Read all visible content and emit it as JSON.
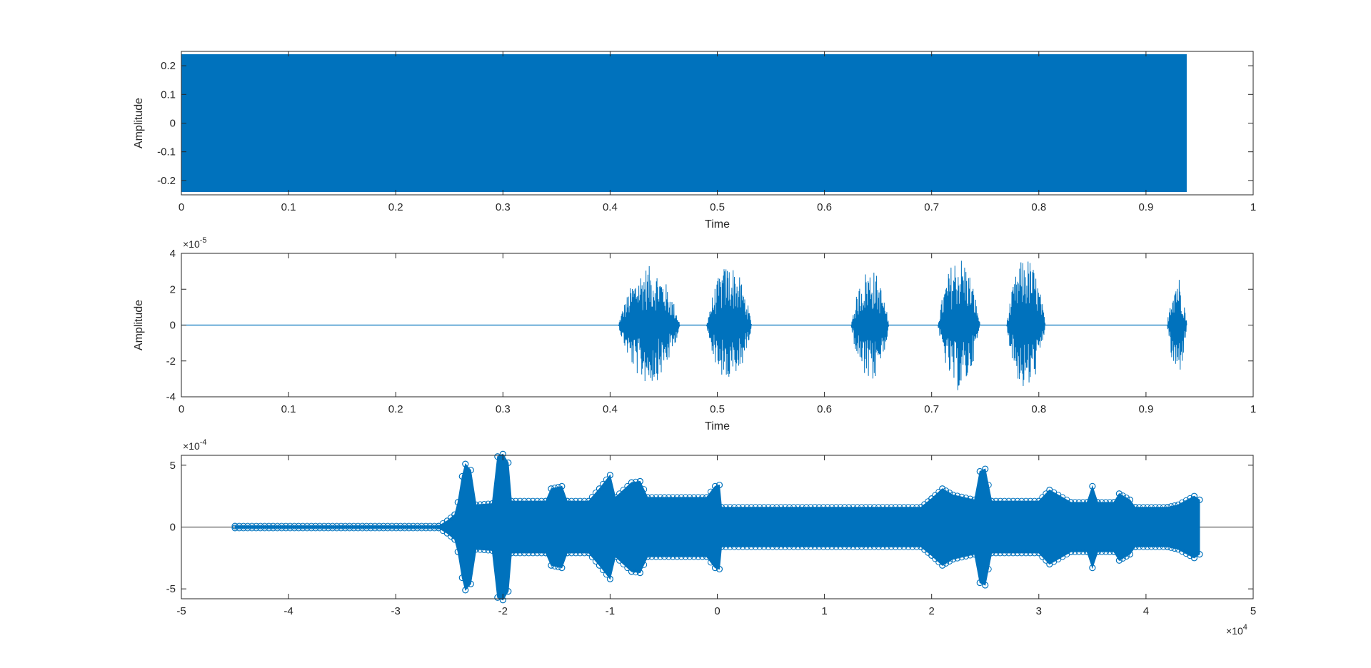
{
  "figure": {
    "background": "#ffffff",
    "series_color": "#0072BD",
    "axis_color": "#262626"
  },
  "chart_data": [
    {
      "type": "area",
      "xlabel": "Time",
      "ylabel": "Amplitude",
      "xlim": [
        0,
        1
      ],
      "ylim": [
        -0.25,
        0.25
      ],
      "xticks": [
        0,
        0.1,
        0.2,
        0.3,
        0.4,
        0.5,
        0.6,
        0.7,
        0.8,
        0.9,
        1
      ],
      "yticks": [
        -0.2,
        -0.1,
        0,
        0.1,
        0.2
      ],
      "xtick_labels": [
        "0",
        "0.1",
        "0.2",
        "0.3",
        "0.4",
        "0.5",
        "0.6",
        "0.7",
        "0.8",
        "0.9",
        "1"
      ],
      "ytick_labels": [
        "-0.2",
        "-0.1",
        "0",
        "0.1",
        "0.2"
      ],
      "y_exponent": "",
      "x_exponent": "",
      "grid": false,
      "series": [
        {
          "x": [
            0,
            0.938
          ],
          "upper": [
            0.24,
            0.24
          ],
          "lower": [
            -0.24,
            -0.24
          ]
        }
      ]
    },
    {
      "type": "line",
      "xlabel": "Time",
      "ylabel": "Amplitude",
      "xlim": [
        0,
        1
      ],
      "ylim": [
        -4,
        4
      ],
      "xticks": [
        0,
        0.1,
        0.2,
        0.3,
        0.4,
        0.5,
        0.6,
        0.7,
        0.8,
        0.9,
        1
      ],
      "yticks": [
        -4,
        -2,
        0,
        2,
        4
      ],
      "xtick_labels": [
        "0",
        "0.1",
        "0.2",
        "0.3",
        "0.4",
        "0.5",
        "0.6",
        "0.7",
        "0.8",
        "0.9",
        "1"
      ],
      "ytick_labels": [
        "-4",
        "-2",
        "0",
        "2",
        "4"
      ],
      "y_exponent": "-5",
      "x_exponent": "",
      "grid": false,
      "baseline_x": [
        0,
        0.938
      ],
      "bursts": [
        {
          "start": 0.408,
          "end": 0.465,
          "peak_pos": 3.3,
          "peak_neg": -3.3
        },
        {
          "start": 0.49,
          "end": 0.532,
          "peak_pos": 3.4,
          "peak_neg": -3.3
        },
        {
          "start": 0.625,
          "end": 0.66,
          "peak_pos": 3.2,
          "peak_neg": -3.3
        },
        {
          "start": 0.706,
          "end": 0.745,
          "peak_pos": 3.9,
          "peak_neg": -3.7
        },
        {
          "start": 0.77,
          "end": 0.806,
          "peak_pos": 3.8,
          "peak_neg": -3.7
        },
        {
          "start": 0.92,
          "end": 0.938,
          "peak_pos": 2.9,
          "peak_neg": -2.9
        }
      ]
    },
    {
      "type": "scatter",
      "xlabel": "",
      "ylabel": "",
      "xlim": [
        -5,
        5
      ],
      "ylim": [
        -5.8,
        5.8
      ],
      "xticks": [
        -5,
        -4,
        -3,
        -2,
        -1,
        0,
        1,
        2,
        3,
        4,
        5
      ],
      "yticks": [
        -5,
        0,
        5
      ],
      "xtick_labels": [
        "-5",
        "-4",
        "-3",
        "-2",
        "-1",
        "0",
        "1",
        "2",
        "3",
        "4",
        "5"
      ],
      "ytick_labels": [
        "-5",
        "0",
        "5"
      ],
      "y_exponent": "-4",
      "x_exponent": "4",
      "grid": false,
      "marker": "o",
      "stem_baseline": true,
      "envelope": [
        [
          -4.5,
          0.08
        ],
        [
          -2.6,
          0.08
        ],
        [
          -2.52,
          0.5
        ],
        [
          -2.45,
          1.0
        ],
        [
          -2.42,
          2.0
        ],
        [
          -2.38,
          4.1
        ],
        [
          -2.35,
          5.1
        ],
        [
          -2.3,
          4.6
        ],
        [
          -2.25,
          1.8
        ],
        [
          -2.1,
          1.9
        ],
        [
          -2.05,
          5.7
        ],
        [
          -2.0,
          5.9
        ],
        [
          -1.95,
          5.2
        ],
        [
          -1.92,
          2.1
        ],
        [
          -1.6,
          2.1
        ],
        [
          -1.55,
          3.1
        ],
        [
          -1.45,
          3.3
        ],
        [
          -1.4,
          2.1
        ],
        [
          -1.2,
          2.1
        ],
        [
          -1.1,
          3.1
        ],
        [
          -1.0,
          4.2
        ],
        [
          -0.95,
          2.4
        ],
        [
          -0.8,
          3.6
        ],
        [
          -0.72,
          3.7
        ],
        [
          -0.65,
          2.4
        ],
        [
          -0.1,
          2.4
        ],
        [
          -0.02,
          3.3
        ],
        [
          0.02,
          3.4
        ],
        [
          0.04,
          1.6
        ],
        [
          1.9,
          1.6
        ],
        [
          2.0,
          2.3
        ],
        [
          2.1,
          3.1
        ],
        [
          2.2,
          2.6
        ],
        [
          2.4,
          2.2
        ],
        [
          2.45,
          4.5
        ],
        [
          2.5,
          4.7
        ],
        [
          2.56,
          2.1
        ],
        [
          3.0,
          2.1
        ],
        [
          3.1,
          3.0
        ],
        [
          3.3,
          2.0
        ],
        [
          3.45,
          2.0
        ],
        [
          3.5,
          3.3
        ],
        [
          3.55,
          2.0
        ],
        [
          3.7,
          2.0
        ],
        [
          3.75,
          2.7
        ],
        [
          3.85,
          2.2
        ],
        [
          3.9,
          1.6
        ],
        [
          4.2,
          1.6
        ],
        [
          4.3,
          1.8
        ],
        [
          4.45,
          2.5
        ],
        [
          4.5,
          2.2
        ]
      ]
    }
  ]
}
